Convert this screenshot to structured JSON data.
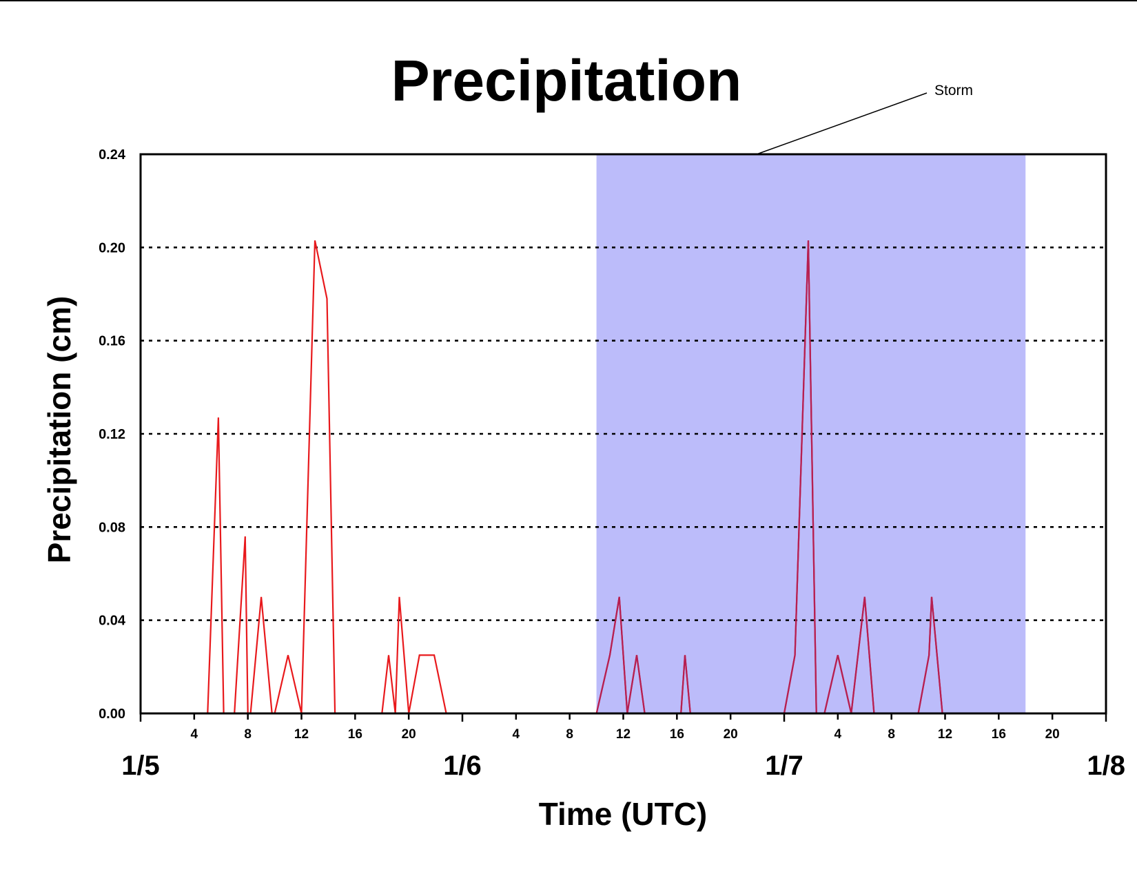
{
  "chart_data": {
    "type": "line",
    "title": "Precipitation",
    "xlabel": "Time (UTC)",
    "ylabel": "Precipitation (cm)",
    "x_unit": "hours since 1/5 00 UTC",
    "xlim": [
      0,
      72
    ],
    "ylim": [
      0,
      0.24
    ],
    "yticks": [
      "0.00",
      "0.04",
      "0.08",
      "0.12",
      "0.16",
      "0.20",
      "0.24"
    ],
    "ytick_values": [
      0,
      0.04,
      0.08,
      0.12,
      0.16,
      0.2,
      0.24
    ],
    "hour_tick_labels": [
      "4",
      "8",
      "12",
      "16",
      "20"
    ],
    "day_labels": [
      "1/5",
      "1/6",
      "1/7",
      "1/8"
    ],
    "grid": "horizontal dotted",
    "line_color": "#e8191c",
    "storm_line_color": "#b51f52",
    "shade_color": "#bcbcfa",
    "series": [
      {
        "x": [
          0,
          5,
          5.8,
          6.2,
          7,
          7.8,
          8,
          8.2,
          9,
          9.8,
          10,
          11,
          12,
          12,
          13,
          13.9,
          14.5,
          14.5,
          18,
          18.5,
          19,
          19.3,
          20,
          20.8,
          21.9,
          22.8,
          23.3,
          23.5,
          34,
          35,
          35.7,
          36.3,
          37,
          37.6,
          38,
          40.3,
          40.6,
          41,
          41.5,
          48,
          48.8,
          49.8,
          50.4,
          51,
          52,
          53,
          54,
          54.7,
          55,
          55.6,
          58,
          58.8,
          59,
          59.8,
          72
        ],
        "y": [
          0,
          0,
          0.127,
          0,
          0,
          0.076,
          0,
          0,
          0.05,
          0,
          0,
          0.025,
          0,
          0,
          0.203,
          0.178,
          0,
          0,
          0,
          0.025,
          0,
          0.05,
          0,
          0.025,
          0.025,
          0,
          0,
          0,
          0,
          0.025,
          0.05,
          0,
          0.025,
          0,
          0,
          0,
          0.025,
          0,
          0,
          0,
          0.025,
          0.203,
          0,
          0,
          0.025,
          0,
          0.05,
          0,
          0,
          0,
          0,
          0.025,
          0.05,
          0,
          0
        ]
      }
    ],
    "shaded_regions": [
      {
        "start": 34,
        "end": 66
      }
    ],
    "annotations": [
      {
        "text": "Storm"
      }
    ]
  }
}
